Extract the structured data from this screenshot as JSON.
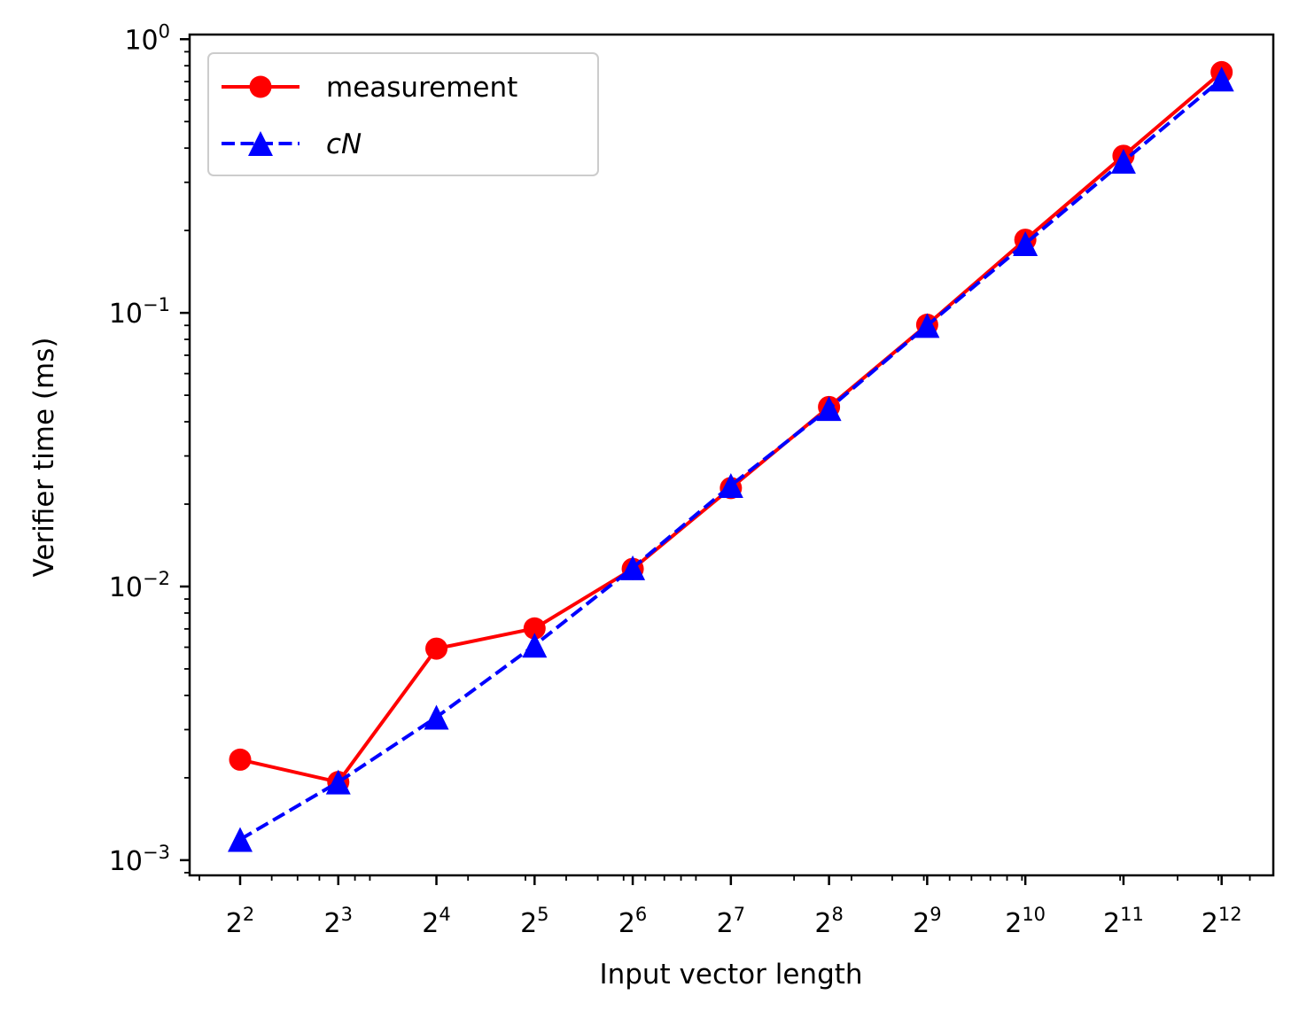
{
  "chart_data": {
    "type": "line",
    "xlabel": "Input vector length",
    "ylabel": "Verifier time (ms)",
    "x_scale": "log2",
    "y_scale": "log10",
    "x": [
      4,
      8,
      16,
      32,
      64,
      128,
      256,
      512,
      1024,
      2048,
      4096
    ],
    "x_ticks": [
      {
        "value": 4,
        "base": "2",
        "exp": "2"
      },
      {
        "value": 8,
        "base": "2",
        "exp": "3"
      },
      {
        "value": 16,
        "base": "2",
        "exp": "4"
      },
      {
        "value": 32,
        "base": "2",
        "exp": "5"
      },
      {
        "value": 64,
        "base": "2",
        "exp": "6"
      },
      {
        "value": 128,
        "base": "2",
        "exp": "7"
      },
      {
        "value": 256,
        "base": "2",
        "exp": "8"
      },
      {
        "value": 512,
        "base": "2",
        "exp": "9"
      },
      {
        "value": 1024,
        "base": "2",
        "exp": "10"
      },
      {
        "value": 2048,
        "base": "2",
        "exp": "11"
      },
      {
        "value": 4096,
        "base": "2",
        "exp": "12"
      }
    ],
    "y_ticks": [
      {
        "value": 0.001,
        "base": "10",
        "exp": "−3"
      },
      {
        "value": 0.01,
        "base": "10",
        "exp": "−2"
      },
      {
        "value": 0.1,
        "base": "10",
        "exp": "−1"
      },
      {
        "value": 1,
        "base": "10",
        "exp": "0"
      }
    ],
    "xlim": [
      2.8,
      5900
    ],
    "ylim": [
      0.00088,
      1.04
    ],
    "grid": false,
    "legend_position": "top-left",
    "series": [
      {
        "name": "measurement",
        "color": "#ff0000",
        "line_style": "solid",
        "marker": "circle",
        "values": [
          0.00233,
          0.00193,
          0.00593,
          0.00703,
          0.0116,
          0.0229,
          0.0453,
          0.0905,
          0.185,
          0.375,
          0.758
        ]
      },
      {
        "name": "cN",
        "name_style": "italic",
        "color": "#0000ff",
        "line_style": "dashed",
        "marker": "triangle",
        "values": [
          0.00119,
          0.00193,
          0.00333,
          0.0061,
          0.0117,
          0.0234,
          0.0447,
          0.0899,
          0.179,
          0.358,
          0.715
        ]
      }
    ]
  }
}
